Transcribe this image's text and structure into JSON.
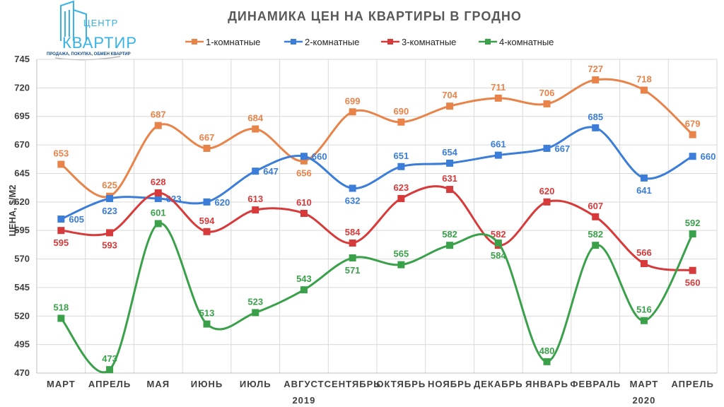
{
  "logo": {
    "name_top": "ЦЕНТР",
    "name_main": "КВАРТИР",
    "tagline": "ПРОДАЖА, ПОКУПКА, ОБМЕН КВАРТИР"
  },
  "chart_data": {
    "type": "line",
    "title": "ДИНАМИКА ЦЕН НА КВАРТИРЫ В ГРОДНО",
    "xlabel": "",
    "ylabel": "ЦЕНА, $/М2",
    "ylim": [
      470,
      745
    ],
    "yticks": [
      470,
      495,
      520,
      545,
      570,
      595,
      620,
      645,
      670,
      695,
      720,
      745
    ],
    "grid": true,
    "legend_position": "top",
    "categories": [
      "МАРТ",
      "АПРЕЛЬ",
      "МАЯ",
      "ИЮНЬ",
      "ИЮЛЬ",
      "АВГУСТ",
      "СЕНТЯБРЬ",
      "ОКТЯБРЬ",
      "НОЯБРЬ",
      "ДЕКАБРЬ",
      "ЯНВАРЬ",
      "ФЕВРАЛЬ",
      "МАРТ",
      "АПРЕЛЬ"
    ],
    "year_labels": [
      {
        "label": "2019",
        "category_index": 5
      },
      {
        "label": "2020",
        "category_index": 12
      }
    ],
    "series": [
      {
        "name": "1-комнатные",
        "color": "#e8834a",
        "values": [
          653,
          625,
          687,
          667,
          684,
          656,
          699,
          690,
          704,
          711,
          706,
          727,
          718,
          679
        ]
      },
      {
        "name": "2-комнатные",
        "color": "#3b7dd8",
        "values": [
          605,
          623,
          623,
          620,
          647,
          660,
          632,
          651,
          654,
          661,
          667,
          685,
          641,
          660
        ]
      },
      {
        "name": "3-комнатные",
        "color": "#d63a3a",
        "values": [
          595,
          593,
          628,
          594,
          613,
          610,
          584,
          623,
          631,
          582,
          620,
          607,
          566,
          560
        ]
      },
      {
        "name": "4-комнатные",
        "color": "#3aa14a",
        "values": [
          518,
          473,
          601,
          513,
          523,
          543,
          571,
          565,
          582,
          584,
          480,
          582,
          516,
          592
        ]
      }
    ]
  }
}
